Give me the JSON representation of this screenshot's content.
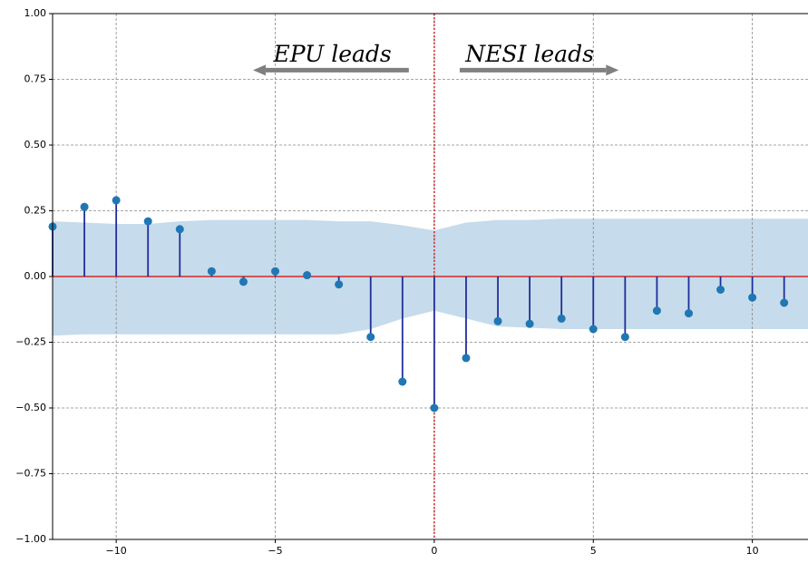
{
  "chart_data": {
    "type": "stem",
    "x": [
      -12,
      -11,
      -10,
      -9,
      -8,
      -7,
      -6,
      -5,
      -4,
      -3,
      -2,
      -1,
      0,
      1,
      2,
      3,
      4,
      5,
      6,
      7,
      8,
      9,
      10,
      11
    ],
    "values": [
      0.19,
      0.265,
      0.29,
      0.21,
      0.18,
      0.02,
      -0.02,
      0.02,
      0.005,
      -0.03,
      -0.23,
      -0.4,
      -0.5,
      -0.31,
      -0.17,
      -0.18,
      -0.16,
      -0.2,
      -0.23,
      -0.13,
      -0.14,
      -0.05,
      -0.08,
      -0.1
    ],
    "stem_color": "#1f2f9a",
    "marker_color": "#1f77b4",
    "band": {
      "color": "#c6dbeb",
      "x": [
        -12,
        -11,
        -10,
        -9,
        -8,
        -7,
        -6,
        -5,
        -4,
        -3,
        -2,
        -1,
        0,
        1,
        2,
        3,
        4,
        5,
        6,
        7,
        8,
        9,
        10,
        11,
        11.75
      ],
      "upper": [
        0.21,
        0.205,
        0.2,
        0.2,
        0.21,
        0.215,
        0.215,
        0.215,
        0.215,
        0.21,
        0.21,
        0.195,
        0.175,
        0.205,
        0.215,
        0.215,
        0.22,
        0.22,
        0.22,
        0.22,
        0.22,
        0.22,
        0.22,
        0.22,
        0.22
      ],
      "lower": [
        -0.225,
        -0.22,
        -0.22,
        -0.22,
        -0.22,
        -0.22,
        -0.22,
        -0.22,
        -0.22,
        -0.22,
        -0.2,
        -0.16,
        -0.13,
        -0.16,
        -0.19,
        -0.195,
        -0.2,
        -0.2,
        -0.2,
        -0.2,
        -0.2,
        -0.2,
        -0.2,
        -0.2,
        -0.2
      ]
    },
    "zero_line_color": "#d62728",
    "annotations": [
      {
        "text": "EPU leads",
        "x": -3.2,
        "y": 0.84,
        "arrow_from": -0.8,
        "arrow_to": -5.7,
        "arrow_y": 0.785
      },
      {
        "text": "NESI leads",
        "x": 3.0,
        "y": 0.84,
        "arrow_from": 0.8,
        "arrow_to": 5.8,
        "arrow_y": 0.785
      }
    ],
    "xlim": [
      -12,
      11.75
    ],
    "ylim": [
      -1,
      1
    ],
    "xticks": [
      {
        "value": -10,
        "label": "−10"
      },
      {
        "value": -5,
        "label": "−5"
      },
      0,
      5,
      10
    ],
    "yticks": [
      {
        "value": -1,
        "label": "−1.00"
      },
      {
        "value": -0.75,
        "label": "−0.75"
      },
      {
        "value": -0.5,
        "label": "−0.50"
      },
      {
        "value": -0.25,
        "label": "−0.25"
      },
      {
        "value": 0,
        "label": "0.00"
      },
      {
        "value": 0.25,
        "label": "0.25"
      },
      {
        "value": 0.5,
        "label": "0.50"
      },
      {
        "value": 0.75,
        "label": "0.75"
      },
      {
        "value": 1,
        "label": "1.00"
      }
    ],
    "grid": true
  }
}
